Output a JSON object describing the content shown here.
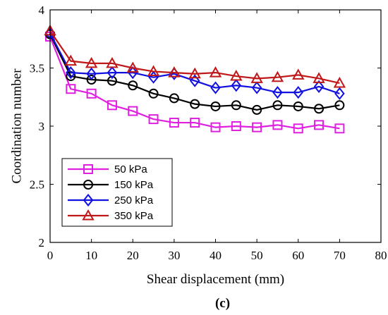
{
  "chart_data": {
    "type": "line",
    "x": [
      0,
      5,
      10,
      15,
      20,
      25,
      30,
      35,
      40,
      45,
      50,
      55,
      60,
      65,
      70
    ],
    "series": [
      {
        "name": "50 kPa",
        "color": "#e020e0",
        "marker": "square",
        "values": [
          3.77,
          3.32,
          3.28,
          3.18,
          3.13,
          3.06,
          3.03,
          3.03,
          2.99,
          3.0,
          2.99,
          3.01,
          2.98,
          3.01,
          2.98
        ]
      },
      {
        "name": "150 kPa",
        "color": "#000000",
        "marker": "circle",
        "values": [
          3.79,
          3.43,
          3.4,
          3.39,
          3.35,
          3.28,
          3.24,
          3.19,
          3.17,
          3.18,
          3.14,
          3.18,
          3.17,
          3.15,
          3.18
        ]
      },
      {
        "name": "250 kPa",
        "color": "#1010e0",
        "marker": "diamond",
        "values": [
          3.8,
          3.46,
          3.45,
          3.46,
          3.46,
          3.42,
          3.45,
          3.39,
          3.33,
          3.35,
          3.33,
          3.29,
          3.29,
          3.34,
          3.28
        ]
      },
      {
        "name": "350 kPa",
        "color": "#c01818",
        "marker": "triangle",
        "values": [
          3.82,
          3.56,
          3.54,
          3.54,
          3.5,
          3.47,
          3.46,
          3.45,
          3.46,
          3.43,
          3.41,
          3.42,
          3.44,
          3.41,
          3.37
        ]
      }
    ],
    "xlabel": "Shear displacement (mm)",
    "ylabel": "Coordination number",
    "xlim": [
      0,
      80
    ],
    "ylim": [
      2,
      4
    ],
    "xticks": [
      0,
      10,
      20,
      30,
      40,
      50,
      60,
      70,
      80
    ],
    "yticks": [
      2,
      2.5,
      3,
      3.5,
      4
    ],
    "ytick_labels": [
      "2",
      "2.5",
      "3",
      "3.5",
      "4"
    ],
    "grid": false,
    "legend_position": "bottom-left",
    "panel_label": "(c)"
  }
}
